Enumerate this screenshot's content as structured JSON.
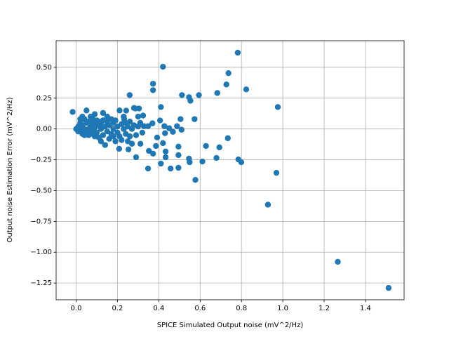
{
  "chart_data": {
    "type": "scatter",
    "xlabel": "SPICE Simulated Output noise (mV^2/Hz)",
    "ylabel": "Output noise Estimation Error (mV^2/Hz)",
    "color": "#1f77b4",
    "grid": true,
    "xlim": [
      -0.097,
      1.587
    ],
    "ylim": [
      -1.386,
      0.716
    ],
    "xticks": [
      {
        "value": 0,
        "label": "0.0"
      },
      0.2,
      0.4,
      0.6,
      0.8,
      {
        "value": 1,
        "label": "1.0"
      },
      1.2,
      1.4
    ],
    "yticks": [
      {
        "value": -1.25,
        "label": "−1.25"
      },
      {
        "value": -1,
        "label": "−1.00"
      },
      {
        "value": -0.75,
        "label": "−0.75"
      },
      {
        "value": -0.5,
        "label": "−0.50"
      },
      {
        "value": -0.25,
        "label": "−0.25"
      },
      {
        "value": 0,
        "label": "0.00"
      },
      {
        "value": 0.25,
        "label": "0.25"
      },
      {
        "value": 0.5,
        "label": "0.50"
      }
    ],
    "x": [
      -0.017,
      0.782,
      0.42,
      0.737,
      0.727,
      0.823,
      0.372,
      0.372,
      0.259,
      0.512,
      0.594,
      0.683,
      0.546,
      0.553,
      0.976,
      0.41,
      0.505,
      0.573,
      0.734,
      0.693,
      0.628,
      0.495,
      0.495,
      0.433,
      0.42,
      0.679,
      0.785,
      0.799,
      0.611,
      0.546,
      0.549,
      0.495,
      0.457,
      0.348,
      0.41,
      0.433,
      0.577,
      0.969,
      0.928,
      1.266,
      1.512,
      0.29,
      0.372,
      0.352,
      0.386,
      0.427,
      0.43,
      0.45,
      0.468,
      0.488,
      0.51,
      0.406,
      0.369,
      0.392,
      0.324,
      0.304,
      0.287,
      0.242,
      0.232,
      0.208,
      0.253,
      0.348,
      0.328,
      0.311,
      0,
      0.01,
      0.01,
      0.02,
      0.02,
      0.03,
      0.03,
      0.04,
      0.04,
      0.05,
      0.05,
      0.06,
      0.06,
      0.07,
      0.07,
      0.08,
      0.08,
      0.09,
      0.09,
      0.1,
      0.1,
      0.11,
      0.11,
      0.12,
      0.12,
      0.13,
      0.13,
      0.14,
      0.14,
      0.15,
      0.15,
      0.16,
      0.16,
      0.17,
      0.17,
      0.18,
      0.18,
      0.19,
      0.19,
      0.2,
      0.2,
      0.21,
      0.21,
      0.22,
      0.22,
      0.23,
      0.23,
      0.24,
      0.24,
      0.25,
      0.25,
      0.26,
      0.26,
      0.27,
      0.27,
      0.28,
      0.28,
      0.29,
      0.3,
      0.3,
      0.31,
      0.32,
      0.02,
      0.03,
      0.05,
      0.06,
      0.08,
      0.1,
      0.12,
      0.15,
      0.04,
      0.07,
      0.09,
      0.13,
      0.18
    ],
    "values": [
      0.138,
      0.619,
      0.505,
      0.453,
      0.361,
      0.321,
      0.367,
      0.315,
      0.275,
      0.275,
      0.275,
      0.292,
      0.258,
      0.229,
      0.178,
      0.178,
      0.08,
      0.08,
      -0.075,
      -0.149,
      -0.138,
      -0.143,
      -0.212,
      -0.183,
      -0.115,
      -0.235,
      -0.247,
      -0.27,
      -0.264,
      -0.241,
      -0.27,
      -0.315,
      -0.321,
      -0.321,
      -0.281,
      -0.229,
      -0.413,
      -0.356,
      -0.614,
      -1.078,
      -1.29,
      -0.229,
      -0.2,
      -0.178,
      -0.138,
      0.023,
      -0.034,
      0.006,
      -0.023,
      0.023,
      -0.006,
      0.069,
      0.046,
      -0.069,
      0.109,
      0.166,
      0.166,
      0.149,
      0.08,
      -0.161,
      -0.166,
      0.023,
      0.023,
      -0.12,
      0,
      0.02,
      -0.02,
      0.05,
      -0.01,
      0.03,
      -0.04,
      0.08,
      0,
      0.15,
      -0.03,
      0.06,
      -0.05,
      0.02,
      0.1,
      -0.02,
      0.04,
      0.12,
      -0.06,
      0.03,
      -0.03,
      0.06,
      -0.07,
      0,
      0.04,
      0.13,
      -0.05,
      0.02,
      -0.13,
      0.06,
      -0.02,
      0.03,
      -0.08,
      0.08,
      -0.04,
      0,
      0.05,
      -0.1,
      0.07,
      -0.03,
      0.02,
      0.15,
      -0.06,
      0.04,
      -0.09,
      0,
      0.1,
      -0.04,
      0.05,
      -0.1,
      0.02,
      0.06,
      -0.06,
      0,
      -0.12,
      0.03,
      0.17,
      -0.05,
      0.02,
      0.1,
      0.05,
      -0.03,
      0.08,
      0.1,
      0.05,
      0,
      0.08,
      0.07,
      -0.1,
      0.1,
      -0.05,
      -0.04,
      0.01,
      0.07,
      -0.06
    ]
  }
}
